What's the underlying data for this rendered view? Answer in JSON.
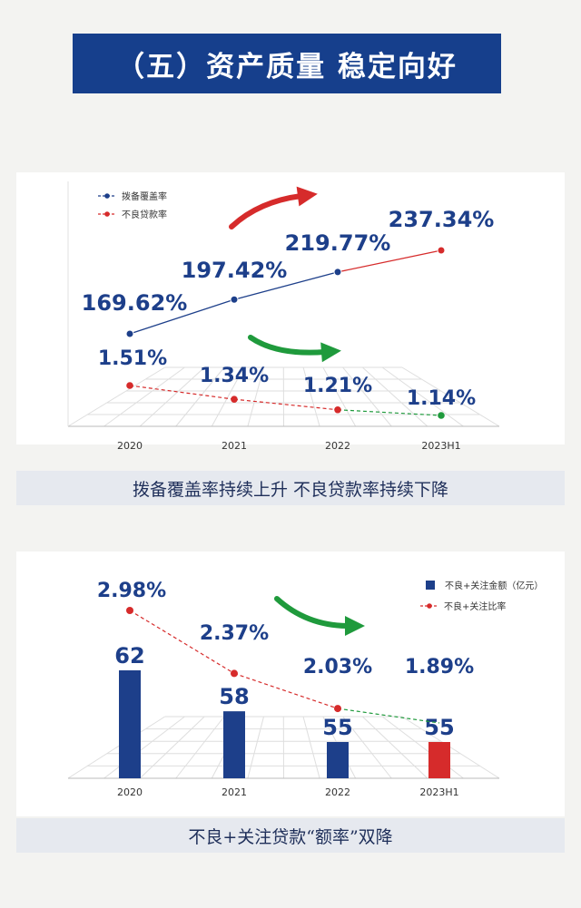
{
  "header": {
    "title": "（五）资产质量 稳定向好"
  },
  "chart1": {
    "caption": "拨备覆盖率持续上升  不良贷款率持续下降"
  },
  "chart2": {
    "caption": "不良+关注贷款“额率”双降"
  },
  "chart_data": [
    {
      "type": "line",
      "categories": [
        "2020",
        "2021",
        "2022",
        "2023H1"
      ],
      "series": [
        {
          "name": "拨备覆盖率",
          "values": [
            169.62,
            197.42,
            219.77,
            237.34
          ],
          "labels": [
            "169.62%",
            "197.42%",
            "219.77%",
            "237.34%"
          ],
          "color": "#1d3f8a"
        },
        {
          "name": "不良贷款率",
          "values": [
            1.51,
            1.34,
            1.21,
            1.14
          ],
          "labels": [
            "1.51%",
            "1.34%",
            "1.21%",
            "1.14%"
          ],
          "color": "#d62b2b"
        }
      ],
      "legend": "top-left",
      "colors": {
        "up_arrow": "#d62b2b",
        "down_arrow": "#1f9a3c",
        "last_point": "#1f9a3c"
      }
    },
    {
      "type": "bar",
      "categories": [
        "2020",
        "2021",
        "2022",
        "2023H1"
      ],
      "series": [
        {
          "name": "不良+关注金额（亿元）",
          "values": [
            62,
            58,
            55,
            55
          ],
          "labels": [
            "62",
            "58",
            "55",
            "55"
          ],
          "color": "#1d3f8a",
          "last_color": "#d62b2b"
        },
        {
          "name": "不良+关注比率",
          "values": [
            2.98,
            2.37,
            2.03,
            1.89
          ],
          "labels": [
            "2.98%",
            "2.37%",
            "2.03%",
            "1.89%"
          ],
          "color": "#d62b2b"
        }
      ],
      "legend": "top-right",
      "colors": {
        "down_arrow": "#1f9a3c"
      }
    }
  ]
}
